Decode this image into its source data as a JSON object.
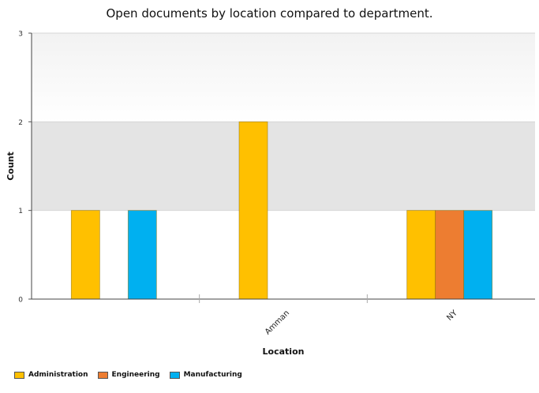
{
  "chart_data": {
    "type": "bar",
    "title": "Open documents by location compared to department.",
    "xlabel": "Location",
    "ylabel": "Count",
    "categories": [
      "",
      "Amman",
      "NY"
    ],
    "ylim": [
      0,
      3
    ],
    "yticks": [
      "0",
      "1",
      "2",
      "3"
    ],
    "grid": true,
    "legend_position": "bottom-left",
    "series": [
      {
        "name": "Administration",
        "color": "#FFC000",
        "values": [
          1,
          2,
          1
        ]
      },
      {
        "name": "Engineering",
        "color": "#ED7D31",
        "values": [
          0,
          0,
          1
        ]
      },
      {
        "name": "Manufacturing",
        "color": "#00B0F0",
        "values": [
          1,
          0,
          1
        ]
      }
    ]
  }
}
